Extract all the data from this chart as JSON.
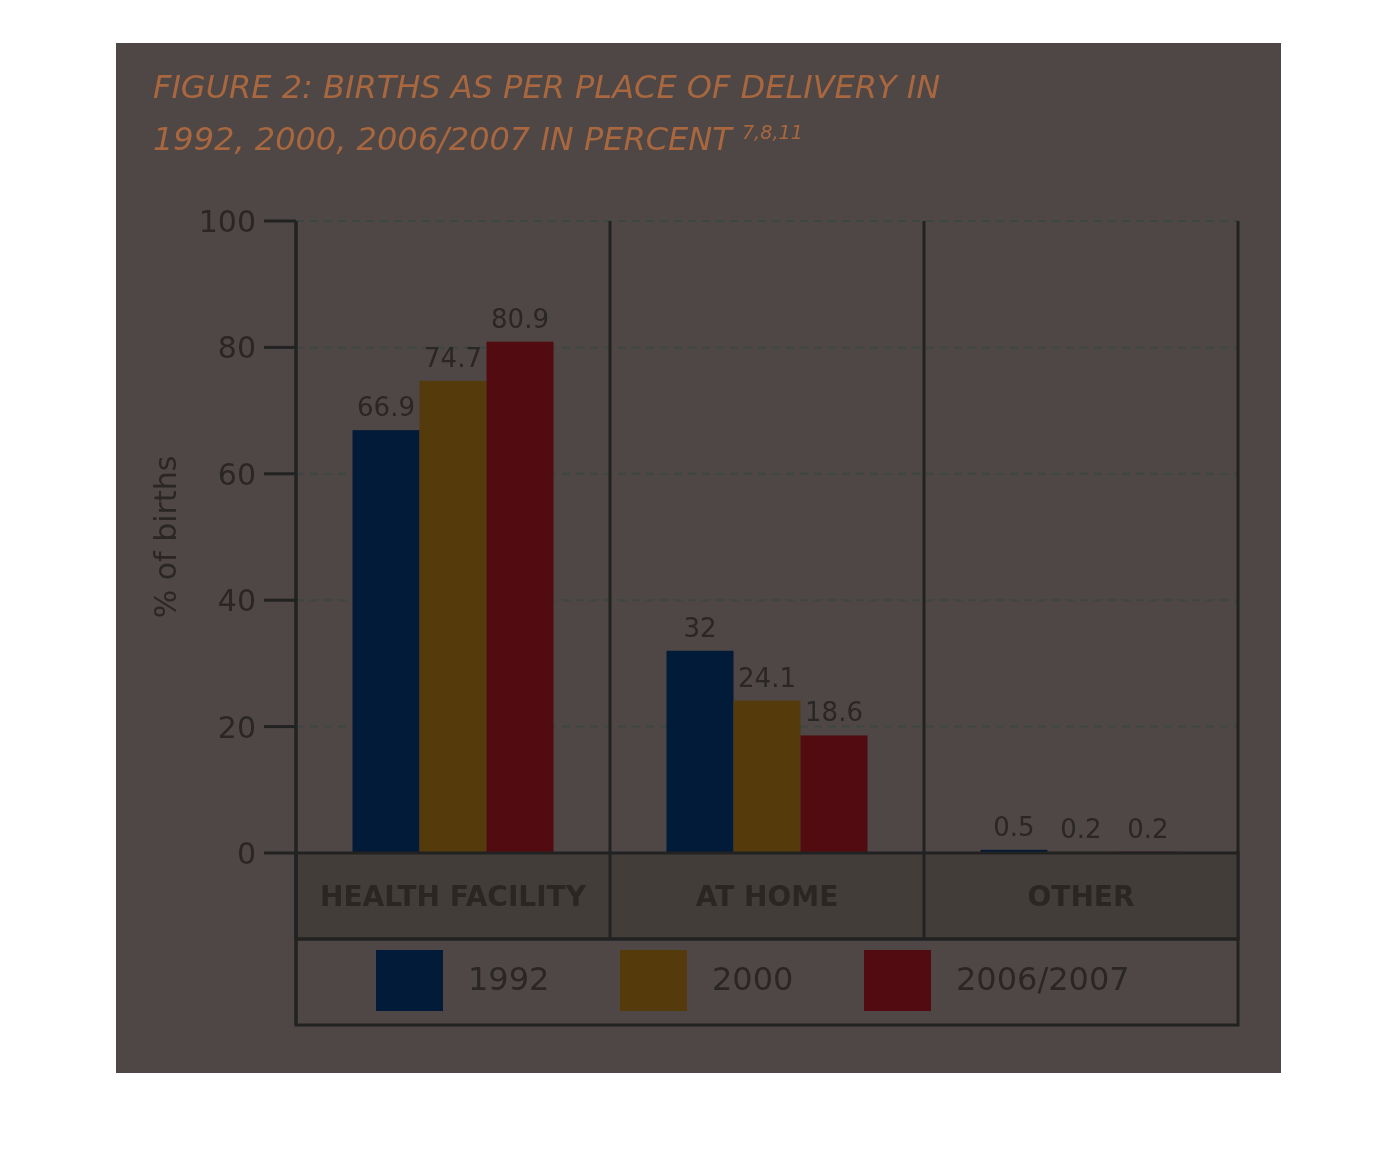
{
  "chart_data": {
    "type": "bar",
    "title": "FIGURE 2: BIRTHS AS PER PLACE OF DELIVERY IN 1992, 2000, 2006/2007 IN PERCENT $^{7,8,11}$",
    "ylabel": "% of births",
    "categories": [
      "HEALTH FACILITY",
      "AT HOME",
      "OTHER"
    ],
    "series": [
      {
        "name": "1992",
        "color": "#021b38",
        "values": [
          66.9,
          32,
          0.5
        ]
      },
      {
        "name": "2000",
        "color": "#553a0b",
        "values": [
          74.7,
          24.1,
          0.2
        ]
      },
      {
        "name": "2006/2007",
        "color": "#520b10",
        "values": [
          80.9,
          18.6,
          0.2
        ]
      }
    ],
    "ylim": [
      0,
      100
    ],
    "yticks": [
      0,
      20,
      40,
      60,
      80,
      100
    ],
    "grid": "y",
    "legend": "bottom",
    "data_labels": true
  }
}
